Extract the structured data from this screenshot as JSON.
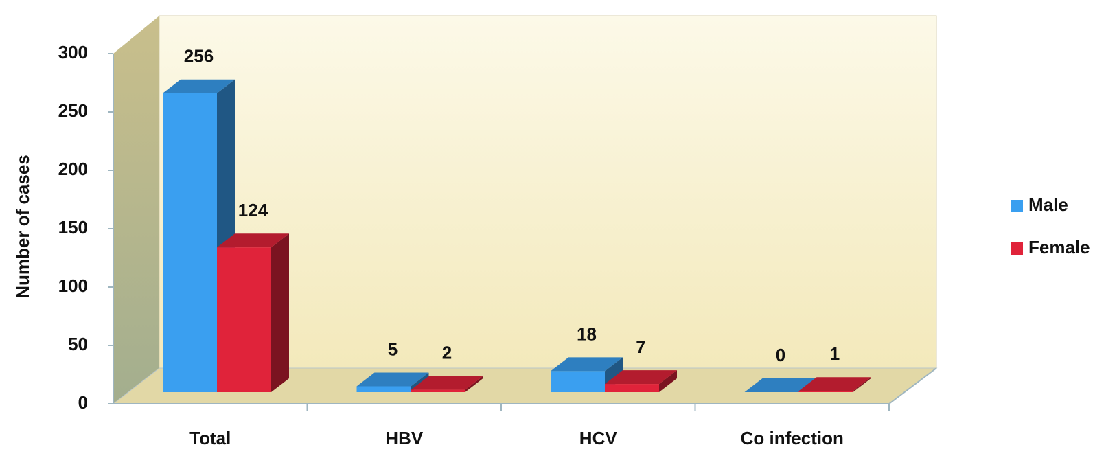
{
  "chart_data": {
    "type": "bar3d",
    "y_label": "Number of cases",
    "categories": [
      "Total",
      "HBV",
      "HCV",
      "Co infection"
    ],
    "series": [
      {
        "name": "Male",
        "color": "#3a9ff0",
        "values": [
          256,
          5,
          18,
          0
        ]
      },
      {
        "name": "Female",
        "color": "#e0233a",
        "values": [
          124,
          2,
          7,
          1
        ]
      }
    ],
    "ylim": [
      0,
      300
    ],
    "yticks": [
      0,
      50,
      100,
      150,
      200,
      250,
      300
    ],
    "legend": "right"
  }
}
